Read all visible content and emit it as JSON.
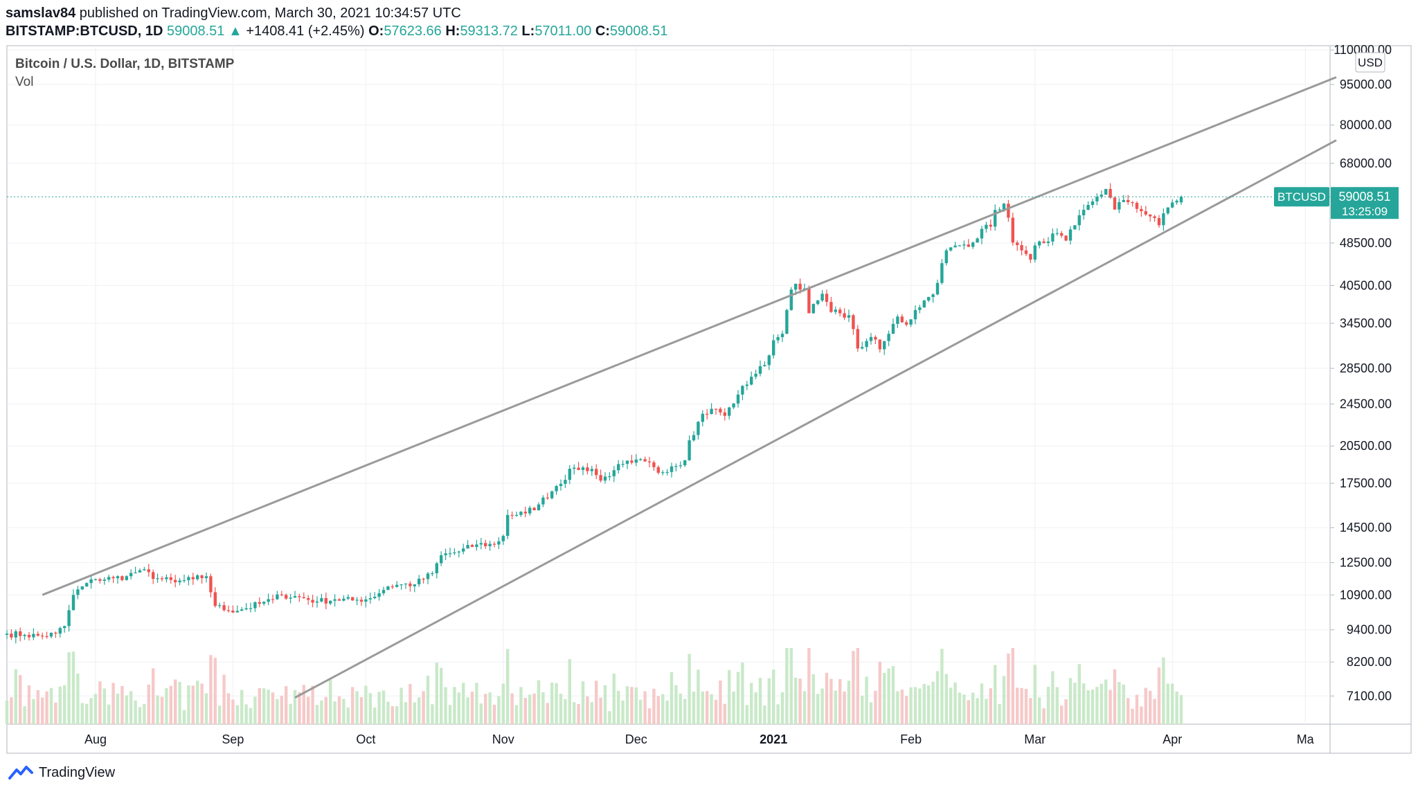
{
  "header": {
    "user": "samslav84",
    "published": " published on TradingView.com, March 30, 2021 10:34:57 UTC",
    "symbol": "BITSTAMP:BTCUSD, 1D",
    "last": "59008.51",
    "arrow": "▲",
    "change": "+1408.41 (+2.45%)",
    "o_label": "O:",
    "o": "57623.66",
    "h_label": "H:",
    "h": "59313.72",
    "l_label": "L:",
    "l": "57011.00",
    "c_label": "C:",
    "c": "59008.51"
  },
  "legend": {
    "title": "Bitcoin / U.S. Dollar, 1D, BITSTAMP",
    "vol": "Vol"
  },
  "price_badge": {
    "symbol": "BTCUSD",
    "price": "59008.51",
    "countdown": "13:25:09"
  },
  "currency_label": "USD",
  "footer": {
    "brand": "TradingView"
  },
  "colors": {
    "up": "#26a69a",
    "down": "#ef5350",
    "trend": "#9a9a9a",
    "grid": "#eef0f3",
    "vol_up": "#c9e9c9",
    "vol_down": "#f6c9c9"
  },
  "chart_data": {
    "type": "candlestick",
    "scale": "log",
    "title": "Bitcoin / U.S. Dollar, 1D, BITSTAMP",
    "y_ticks": [
      "110000.00",
      "95000.00",
      "80000.00",
      "68000.00",
      "59008.51",
      "48500.00",
      "40500.00",
      "34500.00",
      "28500.00",
      "24500.00",
      "20500.00",
      "17500.00",
      "14500.00",
      "12500.00",
      "10900.00",
      "9400.00",
      "8200.00",
      "7100.00"
    ],
    "x_ticks": [
      "Aug",
      "Sep",
      "Oct",
      "Nov",
      "Dec",
      "2021",
      "Feb",
      "Mar",
      "Apr",
      "Ma"
    ],
    "x_tick_days": [
      20,
      51,
      81,
      112,
      142,
      173,
      204,
      232,
      263,
      293
    ],
    "ylim": [
      6300,
      112000
    ],
    "start_date": "2020-07-12",
    "trend_lines": [
      {
        "name": "upper",
        "from_day": 8,
        "from_price": 10900,
        "to_day": 300,
        "to_price": 98000
      },
      {
        "name": "lower",
        "from_day": 65,
        "from_price": 7050,
        "to_day": 300,
        "to_price": 75000
      }
    ],
    "close_anchors": [
      [
        0,
        9250
      ],
      [
        4,
        9200
      ],
      [
        8,
        9150
      ],
      [
        11,
        9250
      ],
      [
        13,
        9550
      ],
      [
        15,
        10900
      ],
      [
        17,
        11300
      ],
      [
        20,
        11650
      ],
      [
        24,
        11700
      ],
      [
        27,
        11800
      ],
      [
        30,
        12100
      ],
      [
        34,
        11700
      ],
      [
        38,
        11500
      ],
      [
        42,
        11650
      ],
      [
        45,
        11800
      ],
      [
        47,
        10400
      ],
      [
        50,
        10200
      ],
      [
        54,
        10300
      ],
      [
        57,
        10500
      ],
      [
        60,
        10700
      ],
      [
        62,
        10900
      ],
      [
        66,
        10800
      ],
      [
        70,
        10600
      ],
      [
        74,
        10700
      ],
      [
        78,
        10650
      ],
      [
        82,
        10750
      ],
      [
        86,
        11300
      ],
      [
        89,
        11400
      ],
      [
        92,
        11400
      ],
      [
        96,
        11950
      ],
      [
        98,
        12900
      ],
      [
        102,
        13100
      ],
      [
        106,
        13500
      ],
      [
        110,
        13500
      ],
      [
        112,
        14000
      ],
      [
        113,
        15300
      ],
      [
        117,
        15400
      ],
      [
        120,
        16000
      ],
      [
        124,
        17300
      ],
      [
        128,
        18700
      ],
      [
        132,
        18600
      ],
      [
        134,
        17700
      ],
      [
        137,
        18500
      ],
      [
        139,
        19000
      ],
      [
        141,
        19100
      ],
      [
        144,
        19200
      ],
      [
        147,
        18300
      ],
      [
        150,
        18800
      ],
      [
        153,
        19300
      ],
      [
        154,
        21000
      ],
      [
        157,
        23500
      ],
      [
        160,
        24000
      ],
      [
        162,
        23300
      ],
      [
        165,
        25500
      ],
      [
        168,
        27500
      ],
      [
        171,
        28900
      ],
      [
        173,
        32100
      ],
      [
        175,
        33000
      ],
      [
        176,
        36500
      ],
      [
        177,
        39800
      ],
      [
        178,
        40800
      ],
      [
        180,
        40000
      ],
      [
        181,
        36000
      ],
      [
        183,
        38000
      ],
      [
        184,
        39100
      ],
      [
        186,
        36200
      ],
      [
        188,
        36000
      ],
      [
        190,
        35700
      ],
      [
        192,
        31000
      ],
      [
        194,
        32000
      ],
      [
        196,
        32200
      ],
      [
        197,
        30900
      ],
      [
        199,
        33000
      ],
      [
        201,
        35500
      ],
      [
        203,
        34300
      ],
      [
        205,
        36500
      ],
      [
        207,
        38000
      ],
      [
        209,
        39000
      ],
      [
        212,
        47000
      ],
      [
        215,
        48000
      ],
      [
        218,
        48600
      ],
      [
        220,
        51500
      ],
      [
        222,
        52000
      ],
      [
        223,
        55800
      ],
      [
        225,
        57300
      ],
      [
        226,
        54000
      ],
      [
        227,
        48600
      ],
      [
        229,
        47000
      ],
      [
        230,
        46300
      ],
      [
        231,
        45200
      ],
      [
        232,
        48000
      ],
      [
        234,
        48500
      ],
      [
        236,
        50500
      ],
      [
        239,
        49000
      ],
      [
        241,
        52300
      ],
      [
        244,
        57000
      ],
      [
        246,
        59000
      ],
      [
        248,
        61000
      ],
      [
        250,
        55900
      ],
      [
        252,
        58200
      ],
      [
        254,
        57500
      ],
      [
        256,
        55500
      ],
      [
        258,
        54300
      ],
      [
        260,
        52300
      ],
      [
        261,
        55000
      ],
      [
        263,
        57600
      ],
      [
        265,
        59000
      ]
    ]
  }
}
